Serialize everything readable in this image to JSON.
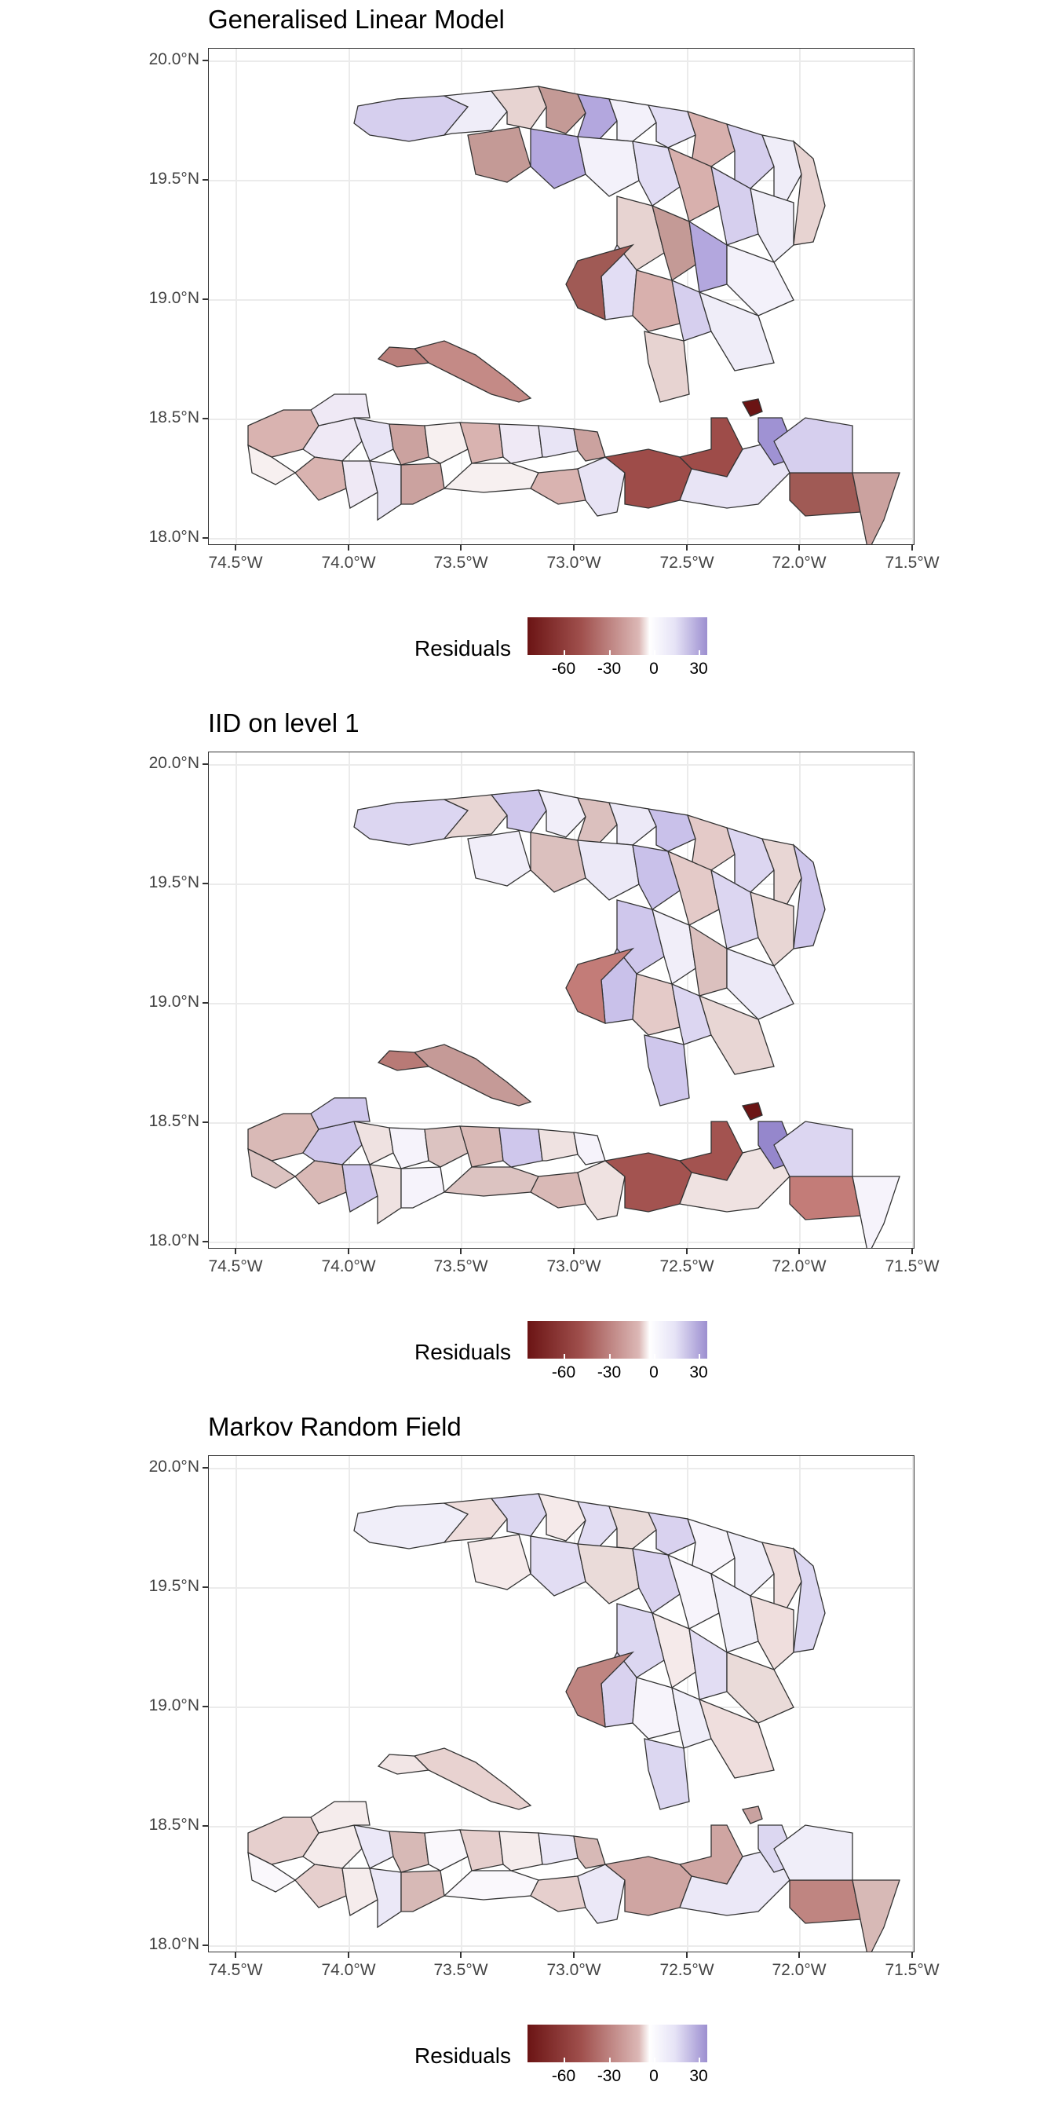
{
  "panels": [
    {
      "title": "Generalised Linear Model",
      "variant": "glm"
    },
    {
      "title": "IID on level 1",
      "variant": "iid"
    },
    {
      "title": "Markov Random Field",
      "variant": "mrf"
    }
  ],
  "y_ticks": [
    "20.0°N",
    "19.5°N",
    "19.0°N",
    "18.5°N",
    "18.0°N"
  ],
  "x_ticks": [
    "74.5°W",
    "74.0°W",
    "73.5°W",
    "73.0°W",
    "72.5°W",
    "72.0°W",
    "71.5°W"
  ],
  "legend": {
    "title": "Residuals",
    "ticks": [
      "-60",
      "-30",
      "0",
      "30"
    ],
    "colors": {
      "low": "#6b1414",
      "mid": "#ffffff",
      "high": "#9c8fd0"
    }
  }
}
